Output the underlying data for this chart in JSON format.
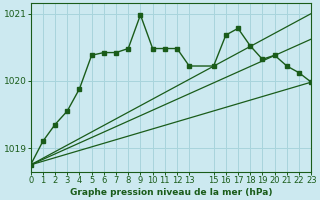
{
  "bg_color": "#cce9f0",
  "grid_color": "#a8d4dc",
  "line_color": "#1a5c1a",
  "title": "Graphe pression niveau de la mer (hPa)",
  "xlim": [
    0,
    23
  ],
  "ylim": [
    1018.65,
    1021.15
  ],
  "yticks": [
    1019,
    1020,
    1021
  ],
  "xticks": [
    0,
    1,
    2,
    3,
    4,
    5,
    6,
    7,
    8,
    9,
    10,
    11,
    12,
    13,
    15,
    16,
    17,
    18,
    19,
    20,
    21,
    22,
    23
  ],
  "main_x": [
    0,
    1,
    2,
    3,
    4,
    5,
    6,
    7,
    8,
    9,
    10,
    11,
    12,
    13,
    15,
    16,
    17,
    18,
    19,
    20,
    21,
    22,
    23
  ],
  "main_y": [
    1018.75,
    1019.1,
    1019.35,
    1019.55,
    1019.88,
    1020.38,
    1020.42,
    1020.42,
    1020.48,
    1020.98,
    1020.48,
    1020.48,
    1020.48,
    1020.22,
    1020.22,
    1020.68,
    1020.78,
    1020.52,
    1020.32,
    1020.38,
    1020.22,
    1020.12,
    1019.98
  ],
  "trend1_x": [
    0,
    23
  ],
  "trend1_y": [
    1018.75,
    1020.62
  ],
  "trend2_x": [
    0,
    23
  ],
  "trend2_y": [
    1018.75,
    1021.0
  ],
  "trend3_x": [
    0,
    23
  ],
  "trend3_y": [
    1018.75,
    1019.98
  ],
  "ylabel_fontsize": 6.5,
  "tick_fontsize": 6.0,
  "xlabel_fontsize": 6.5
}
